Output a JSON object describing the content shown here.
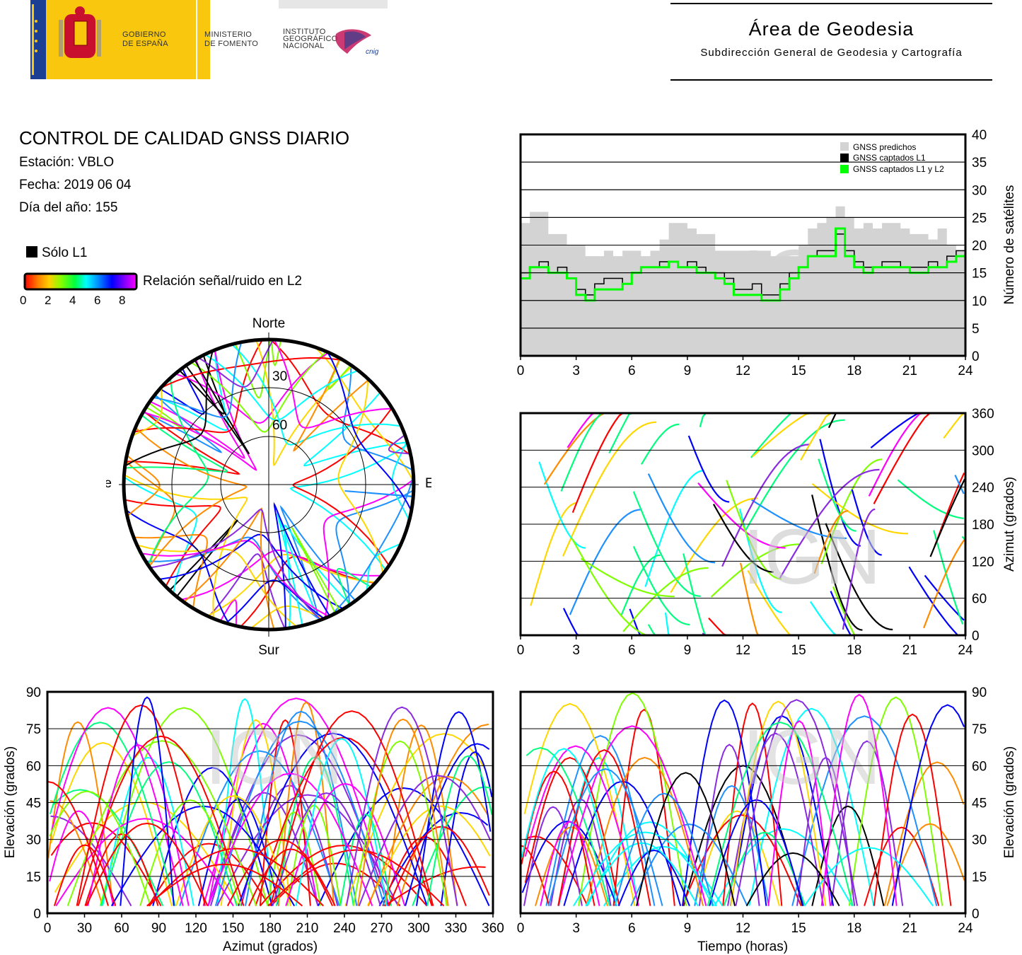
{
  "header": {
    "gov_line1": "GOBIERNO",
    "gov_line2": "DE ESPAÑA",
    "min_line1": "MINISTERIO",
    "min_line2": "DE FOMENTO",
    "inst_line1": "INSTITUTO",
    "inst_line2": "GEOGRÁFICO",
    "inst_line3": "NACIONAL",
    "cnig": "cnig",
    "area_title": "Área de Geodesia",
    "area_subtitle": "Subdirección General de Geodesia y Cartografía"
  },
  "report": {
    "title": "CONTROL DE CALIDAD GNSS DIARIO",
    "station": "Estación: VBLO",
    "date": "Fecha: 2019 06 04",
    "doy": "Día del año: 155"
  },
  "legend": {
    "l1_only": "Sólo L1",
    "snr_label": "Relación señal/ruido en L2",
    "snr_ticks": [
      "0",
      "2",
      "4",
      "6",
      "8"
    ],
    "snr_colors": [
      "#ff0000",
      "#ff8000",
      "#ffd000",
      "#80ff00",
      "#00ff40",
      "#00ffff",
      "#0080ff",
      "#0000ff",
      "#8000ff",
      "#ff00ff"
    ]
  },
  "watermark": "IGN",
  "colors": {
    "predicted": "#d3d3d3",
    "l1": "#000000",
    "l1l2": "#00ff00",
    "track_palette": [
      "#ff0000",
      "#ff8c00",
      "#ffd700",
      "#7fff00",
      "#00ff7f",
      "#00ffff",
      "#1e90ff",
      "#0000ff",
      "#8a2be2",
      "#ff00ff"
    ]
  },
  "chart_data": [
    {
      "id": "satellites",
      "type": "line",
      "x_ticks": [
        "0",
        "3",
        "6",
        "9",
        "12",
        "15",
        "18",
        "21",
        "24"
      ],
      "y_ticks": [
        "0",
        "5",
        "10",
        "15",
        "20",
        "25",
        "30",
        "35",
        "40"
      ],
      "ylabel": "Número de satélites",
      "xlim": [
        0,
        24
      ],
      "ylim": [
        0,
        40
      ],
      "legend_placement": "top-right",
      "series": [
        {
          "name": "GNSS predichos",
          "color": "#d3d3d3",
          "x": [
            0,
            0.5,
            1,
            1.5,
            2,
            2.5,
            3,
            3.5,
            4,
            4.5,
            5,
            5.5,
            6,
            6.5,
            7,
            7.5,
            8,
            8.5,
            9,
            9.5,
            10,
            10.5,
            11,
            11.5,
            12,
            12.5,
            13,
            13.5,
            14,
            14.5,
            15,
            15.5,
            16,
            16.5,
            17,
            17.5,
            18,
            18.5,
            19,
            19.5,
            20,
            20.5,
            21,
            21.5,
            22,
            22.5,
            23,
            23.5,
            24
          ],
          "values": [
            24,
            26,
            26,
            22,
            22,
            20,
            20,
            18,
            18,
            19,
            18,
            19,
            19,
            18,
            19,
            21,
            24,
            24,
            23,
            22,
            22,
            19,
            19,
            19,
            19,
            19,
            19,
            18,
            18,
            18,
            20,
            23,
            24,
            25,
            27,
            25,
            23,
            24,
            23,
            24,
            24,
            23,
            22,
            22,
            21,
            23,
            20,
            19,
            19
          ]
        },
        {
          "name": "GNSS captados L1",
          "color": "#000000",
          "x": [
            0,
            0.5,
            1,
            1.5,
            2,
            2.5,
            3,
            3.5,
            4,
            4.5,
            5,
            5.5,
            6,
            6.5,
            7,
            7.5,
            8,
            8.5,
            9,
            9.5,
            10,
            10.5,
            11,
            11.5,
            12,
            12.5,
            13,
            13.5,
            14,
            14.5,
            15,
            15.5,
            16,
            16.5,
            17,
            17.5,
            18,
            18.5,
            19,
            19.5,
            20,
            20.5,
            21,
            21.5,
            22,
            22.5,
            23,
            23.5,
            24
          ],
          "values": [
            15,
            16,
            17,
            15,
            16,
            14,
            12,
            11,
            13,
            14,
            14,
            13,
            15,
            16,
            16,
            17,
            17,
            16,
            17,
            16,
            15,
            15,
            14,
            12,
            12,
            13,
            11,
            11,
            13,
            15,
            16,
            18,
            19,
            19,
            22,
            19,
            17,
            16,
            16,
            17,
            17,
            16,
            16,
            16,
            17,
            16,
            18,
            19,
            16
          ]
        },
        {
          "name": "GNSS captados L1 y L2",
          "color": "#00ff00",
          "x": [
            0,
            0.5,
            1,
            1.5,
            2,
            2.5,
            3,
            3.5,
            4,
            4.5,
            5,
            5.5,
            6,
            6.5,
            7,
            7.5,
            8,
            8.5,
            9,
            9.5,
            10,
            10.5,
            11,
            11.5,
            12,
            12.5,
            13,
            13.5,
            14,
            14.5,
            15,
            15.5,
            16,
            16.5,
            17,
            17.5,
            18,
            18.5,
            19,
            19.5,
            20,
            20.5,
            21,
            21.5,
            22,
            22.5,
            23,
            23.5,
            24
          ],
          "values": [
            14,
            16,
            16,
            15,
            15,
            14,
            11,
            10,
            12,
            12,
            12,
            13,
            15,
            16,
            16,
            16,
            17,
            16,
            16,
            15,
            15,
            14,
            13,
            11,
            11,
            11,
            10,
            10,
            12,
            14,
            16,
            18,
            18,
            18,
            23,
            18,
            16,
            15,
            16,
            16,
            16,
            16,
            15,
            15,
            16,
            16,
            17,
            18,
            15
          ]
        }
      ]
    },
    {
      "id": "azimuth-time",
      "type": "scatter",
      "x_ticks": [
        "0",
        "3",
        "6",
        "9",
        "12",
        "15",
        "18",
        "21",
        "24"
      ],
      "y_ticks": [
        "0",
        "60",
        "120",
        "180",
        "240",
        "300",
        "360"
      ],
      "ylabel": "Azimut (grados)",
      "xlim": [
        0,
        24
      ],
      "ylim": [
        0,
        360
      ]
    },
    {
      "id": "elevation-azimuth",
      "type": "scatter",
      "x_ticks": [
        "0",
        "30",
        "60",
        "90",
        "120",
        "150",
        "180",
        "210",
        "240",
        "270",
        "300",
        "330",
        "360"
      ],
      "y_ticks": [
        "0",
        "15",
        "30",
        "45",
        "60",
        "75",
        "90"
      ],
      "xlabel": "Azimut (grados)",
      "ylabel": "Elevación (grados)",
      "xlim": [
        0,
        360
      ],
      "ylim": [
        0,
        90
      ]
    },
    {
      "id": "elevation-time",
      "type": "scatter",
      "x_ticks": [
        "0",
        "3",
        "6",
        "9",
        "12",
        "15",
        "18",
        "21",
        "24"
      ],
      "y_ticks": [
        "0",
        "15",
        "30",
        "45",
        "60",
        "75",
        "90"
      ],
      "xlabel": "Tiempo (horas)",
      "ylabel": "Elevación (grados)",
      "xlim": [
        0,
        24
      ],
      "ylim": [
        0,
        90
      ]
    },
    {
      "id": "skyplot",
      "type": "scatter",
      "labels": {
        "north": "Norte",
        "south": "Sur",
        "west": "Oeste",
        "east": "Este"
      },
      "ring_labels": [
        "30",
        "60"
      ]
    }
  ]
}
